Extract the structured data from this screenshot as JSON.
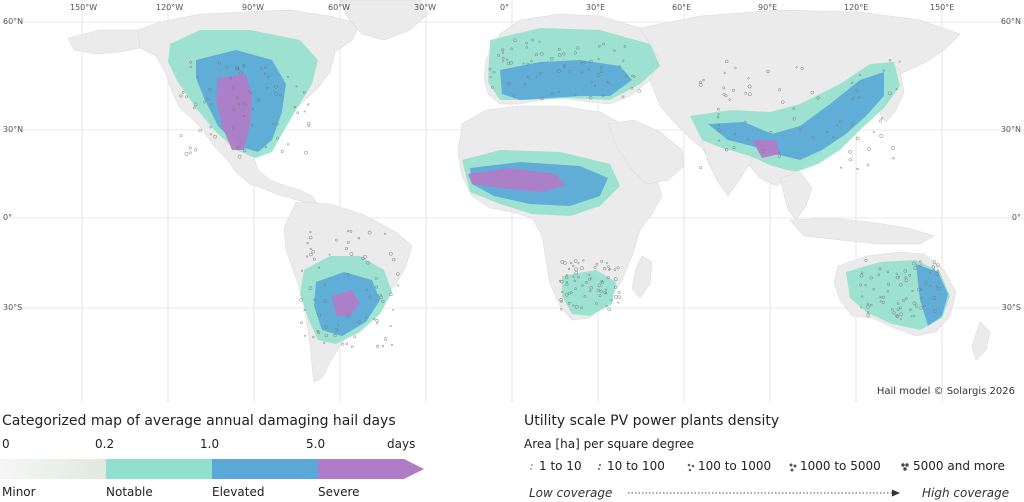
{
  "map": {
    "credit": "Hail model © Solargis 2026",
    "lon_labels": [
      "150°W",
      "120°W",
      "90°W",
      "60°W",
      "30°W",
      "0°",
      "30°E",
      "60°E",
      "90°E",
      "120°E",
      "150°E"
    ],
    "lat_labels": [
      "60°N",
      "30°N",
      "0°",
      "30°S"
    ],
    "colors": {
      "land": "#ebebeb",
      "ocean": "#ffffff",
      "grid": "#cfcfcf",
      "notable": "#8fe0cc",
      "elevated": "#5aa8d8",
      "severe": "#b07cc8",
      "minor": "#e4ebe4"
    }
  },
  "legend": {
    "title": "Categorized map of average annual damaging hail days",
    "thresholds": [
      "0",
      "0.2",
      "1.0",
      "5.0"
    ],
    "unit": "days",
    "categories": [
      {
        "name": "Minor",
        "color": "#e6ece6"
      },
      {
        "name": "Notable",
        "color": "#8fe0cc"
      },
      {
        "name": "Elevated",
        "color": "#5aa8d8"
      },
      {
        "name": "Severe",
        "color": "#b07cc8"
      }
    ]
  },
  "pv": {
    "title": "Utility scale PV power plants density",
    "subtitle": "Area [ha] per square degree",
    "classes": [
      "1 to 10",
      "10 to 100",
      "100 to 1000",
      "1000 to 5000",
      "5000 and more"
    ],
    "low": "Low coverage",
    "high": "High coverage"
  }
}
